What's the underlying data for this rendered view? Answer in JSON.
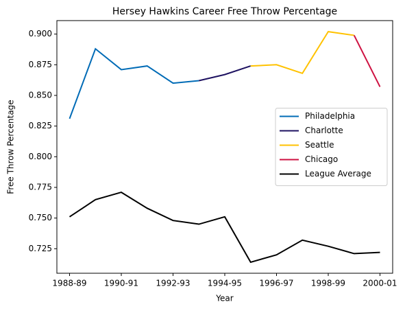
{
  "chart_data": {
    "type": "line",
    "title": "Hersey Hawkins Career Free Throw Percentage",
    "x_label": "Year",
    "y_label": "Free Throw Percentage",
    "categories": [
      "1988-89",
      null,
      "1990-91",
      null,
      "1992-93",
      null,
      "1994-95",
      null,
      "1996-97",
      null,
      "1998-99",
      null,
      "2000-01"
    ],
    "series": [
      {
        "name": "Philadelphia",
        "color": "#006bb6",
        "values": [
          0.831,
          0.888,
          0.871,
          0.874,
          0.86,
          0.862,
          null,
          null,
          null,
          null,
          null,
          null,
          null
        ]
      },
      {
        "name": "Charlotte",
        "color": "#1d1160",
        "values": [
          null,
          null,
          null,
          null,
          null,
          0.862,
          0.867,
          0.874,
          null,
          null,
          null,
          null,
          null
        ]
      },
      {
        "name": "Seattle",
        "color": "#ffc200",
        "values": [
          null,
          null,
          null,
          null,
          null,
          null,
          null,
          0.874,
          0.875,
          0.868,
          0.902,
          0.899,
          null
        ]
      },
      {
        "name": "Chicago",
        "color": "#ce1141",
        "values": [
          null,
          null,
          null,
          null,
          null,
          null,
          null,
          null,
          null,
          null,
          null,
          0.899,
          0.857
        ]
      },
      {
        "name": "League Average",
        "color": "#000000",
        "values": [
          0.751,
          0.765,
          0.771,
          0.758,
          0.748,
          0.745,
          0.751,
          0.714,
          0.72,
          0.732,
          0.727,
          0.721,
          0.722
        ]
      }
    ],
    "ylim": [
      0.705,
      0.911
    ],
    "yticks": [
      {
        "value": 0.725,
        "label": "0.725"
      },
      {
        "value": 0.75,
        "label": "0.750"
      },
      {
        "value": 0.775,
        "label": "0.775"
      },
      {
        "value": 0.8,
        "label": "0.800"
      },
      {
        "value": 0.825,
        "label": "0.825"
      },
      {
        "value": 0.85,
        "label": "0.850"
      },
      {
        "value": 0.875,
        "label": "0.875"
      },
      {
        "value": 0.9,
        "label": "0.900"
      }
    ],
    "grid": false,
    "legend": "center right"
  }
}
